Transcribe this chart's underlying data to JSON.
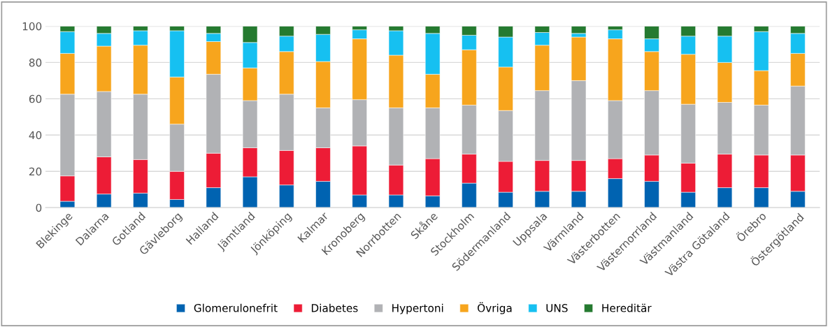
{
  "chart_data": {
    "type": "bar",
    "stacked": true,
    "categories": [
      "Blekinge",
      "Dalarna",
      "Gotland",
      "Gävleborg",
      "Halland",
      "Jämtland",
      "Jönköping",
      "Kalmar",
      "Kronoberg",
      "Norrbotten",
      "Skåne",
      "Stockholm",
      "Södermanland",
      "Uppsala",
      "Värmland",
      "Västerbotten",
      "Västernorrland",
      "Västmanland",
      "Västra Götaland",
      "Örebro",
      "Östergötland"
    ],
    "series": [
      {
        "name": "Glomerulonefrit",
        "color": "#0063b1",
        "values": [
          3.5,
          7.5,
          8,
          4.5,
          11,
          17,
          12.5,
          14.5,
          7,
          7,
          6.5,
          13.5,
          8.5,
          9,
          9,
          16,
          14.5,
          8.5,
          11,
          11,
          9
        ]
      },
      {
        "name": "Diabetes",
        "color": "#ed1c36",
        "values": [
          14,
          20.5,
          18.5,
          15.5,
          19,
          16,
          19,
          18.5,
          27,
          16.5,
          20.5,
          16,
          17,
          17,
          17,
          11,
          14.5,
          16,
          18.5,
          18,
          20
        ]
      },
      {
        "name": "Hypertoni",
        "color": "#b1b2b5",
        "values": [
          45,
          36,
          36,
          26,
          43.5,
          26,
          31,
          22,
          25.5,
          31.5,
          28,
          27,
          28,
          38.5,
          44,
          32,
          35.5,
          32.5,
          28.5,
          27.5,
          38
        ]
      },
      {
        "name": "Övriga",
        "color": "#f7a51d",
        "values": [
          22.5,
          25,
          27,
          26,
          18,
          18,
          23.5,
          25.5,
          33.5,
          29,
          18.5,
          30.5,
          24,
          25,
          24,
          34,
          21.5,
          27.5,
          22,
          19,
          18
        ]
      },
      {
        "name": "UNS",
        "color": "#16c0f1",
        "values": [
          12,
          7,
          8,
          25.5,
          4.5,
          14,
          8.5,
          15,
          5,
          13.5,
          22.5,
          8,
          16.5,
          7,
          2,
          5,
          7,
          10,
          14.5,
          21.5,
          11
        ]
      },
      {
        "name": "Hereditär",
        "color": "#257a30",
        "values": [
          3,
          4,
          2.5,
          2.5,
          4,
          9,
          5.5,
          4.5,
          2,
          2.5,
          4,
          5,
          6,
          3.5,
          4,
          2,
          7,
          5.5,
          5.5,
          3,
          4
        ]
      }
    ],
    "ylim": [
      0,
      100
    ],
    "yticks": [
      0,
      20,
      40,
      60,
      80,
      100
    ],
    "grid": "y",
    "legend": "bottom"
  }
}
